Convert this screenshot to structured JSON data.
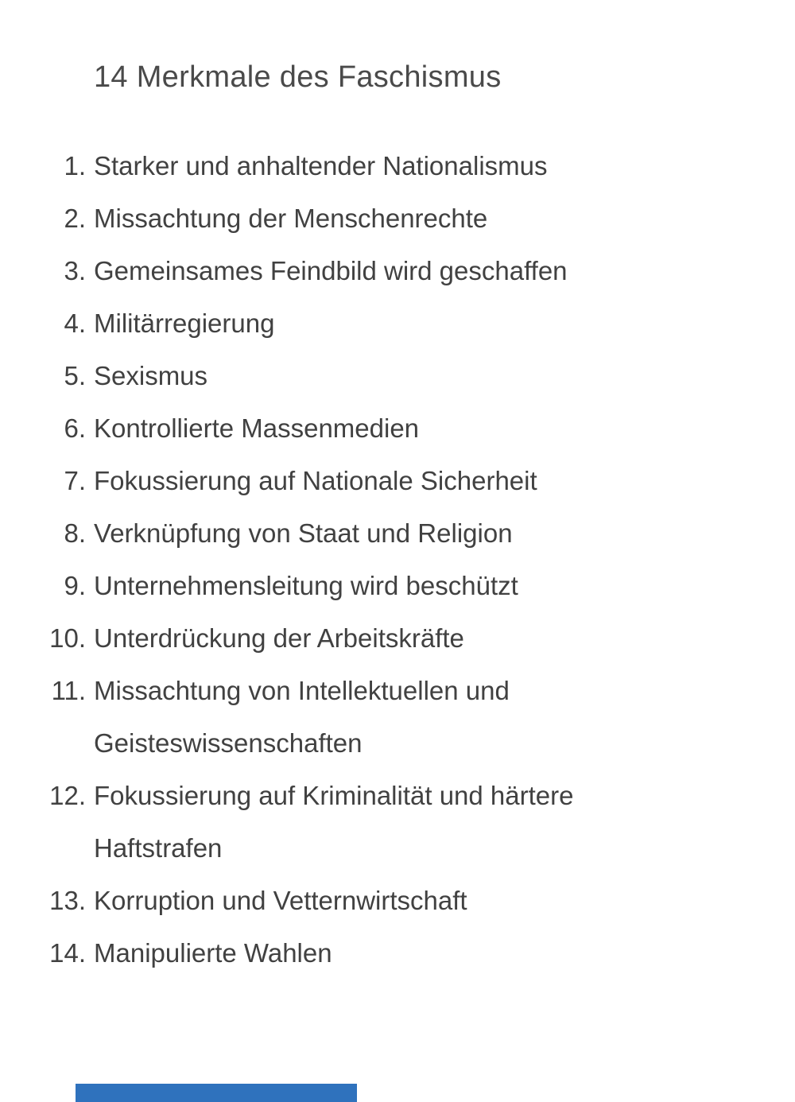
{
  "page": {
    "title": "14 Merkmale des Faschismus"
  },
  "list": {
    "items": [
      {
        "number": "1.",
        "text": "Starker und anhaltender Nationalismus"
      },
      {
        "number": "2.",
        "text": "Missachtung der Menschenrechte"
      },
      {
        "number": "3.",
        "text": "Gemeinsames Feindbild wird geschaffen"
      },
      {
        "number": "4.",
        "text": "Militärregierung"
      },
      {
        "number": "5.",
        "text": "Sexismus"
      },
      {
        "number": "6.",
        "text": "Kontrollierte Massenmedien"
      },
      {
        "number": "7.",
        "text": "Fokussierung auf Nationale Sicherheit"
      },
      {
        "number": "8.",
        "text": "Verknüpfung von Staat und Religion"
      },
      {
        "number": "9.",
        "text": "Unternehmensleitung wird beschützt"
      },
      {
        "number": "10.",
        "text": "Unterdrückung der Arbeitskräfte"
      },
      {
        "number": "11.",
        "text": "Missachtung von Intellektuellen und Geisteswissenschaften"
      },
      {
        "number": "12.",
        "text": "Fokussierung auf Kriminalität und härtere Haftstrafen"
      },
      {
        "number": "13.",
        "text": "Korruption und Vetternwirtschaft"
      },
      {
        "number": "14.",
        "text": "Manipulierte Wahlen"
      }
    ]
  },
  "colors": {
    "text": "#414141",
    "heading": "#4a4a4a",
    "accent_bar": "#2f72bd"
  }
}
